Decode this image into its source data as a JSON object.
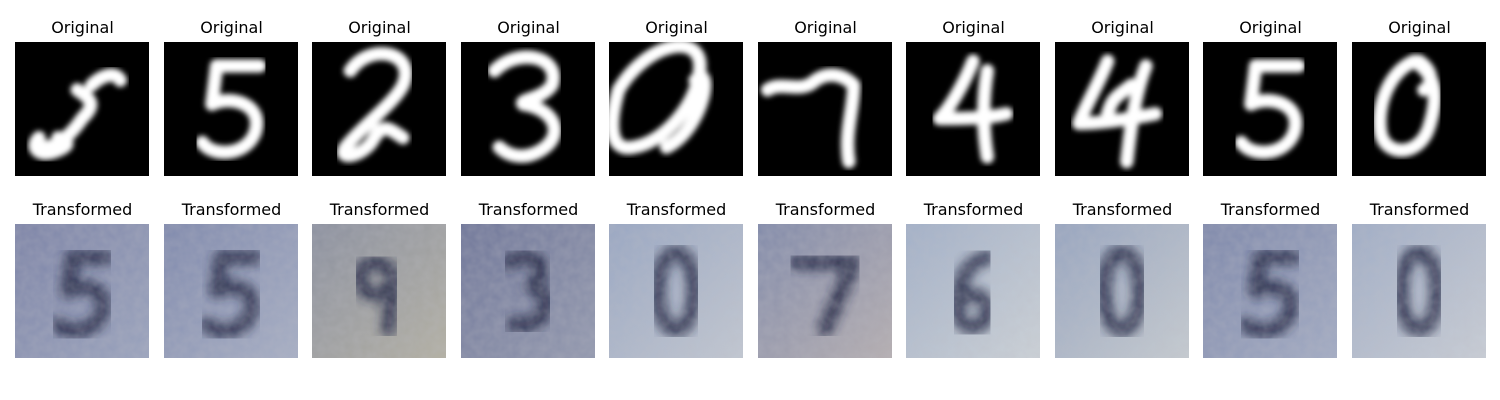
{
  "figure": {
    "top_row_title": "Original",
    "bottom_row_title": "Transformed",
    "digits_shown": [
      "5",
      "5",
      "2",
      "3",
      "0",
      "7",
      "4",
      "4",
      "5",
      "0"
    ],
    "transformed_shown": [
      "5",
      "5",
      "9",
      "3",
      "0",
      "7",
      "6",
      "0",
      "5",
      "0"
    ],
    "colors": {
      "original_bg": "#000000",
      "original_stroke": "#ffffff",
      "transformed_bg": "#8a94b2",
      "transformed_stroke": "#1e2440"
    }
  }
}
